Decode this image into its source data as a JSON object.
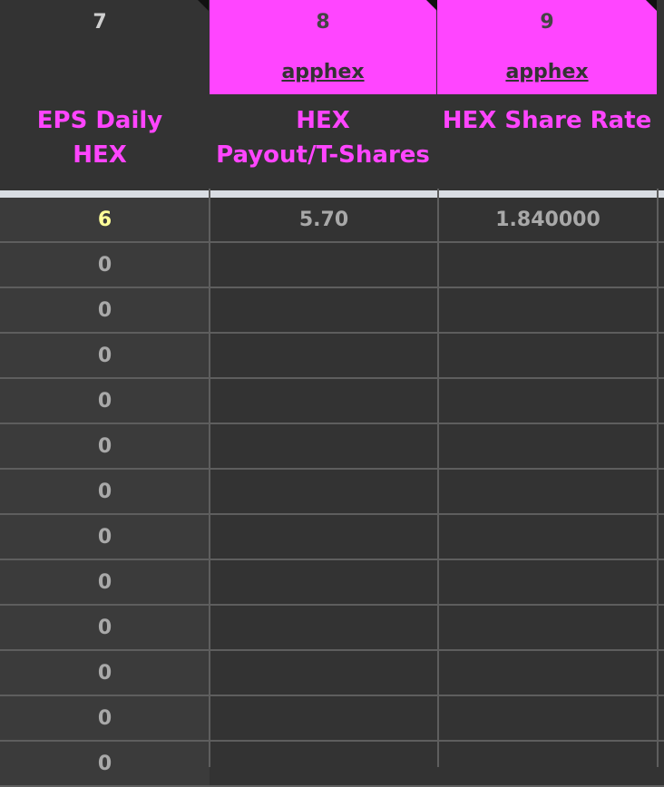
{
  "columns": [
    {
      "number": "7",
      "link": "",
      "header_line1": "EPS Daily",
      "header_line2": "HEX"
    },
    {
      "number": "8",
      "link": "apphex",
      "header_line1": "HEX",
      "header_line2": "Payout/T-Shares"
    },
    {
      "number": "9",
      "link": "apphex",
      "header_line1": "HEX Share Rate",
      "header_line2": ""
    }
  ],
  "rows": [
    {
      "eps": "6",
      "payout": "5.70",
      "rate": "1.840000",
      "highlight": true
    },
    {
      "eps": "0",
      "payout": "",
      "rate": ""
    },
    {
      "eps": "0",
      "payout": "",
      "rate": ""
    },
    {
      "eps": "0",
      "payout": "",
      "rate": ""
    },
    {
      "eps": "0",
      "payout": "",
      "rate": ""
    },
    {
      "eps": "0",
      "payout": "",
      "rate": ""
    },
    {
      "eps": "0",
      "payout": "",
      "rate": ""
    },
    {
      "eps": "0",
      "payout": "",
      "rate": ""
    },
    {
      "eps": "0",
      "payout": "",
      "rate": ""
    },
    {
      "eps": "0",
      "payout": "",
      "rate": ""
    },
    {
      "eps": "0",
      "payout": "",
      "rate": ""
    },
    {
      "eps": "0",
      "payout": "",
      "rate": ""
    },
    {
      "eps": "0",
      "payout": "",
      "rate": ""
    }
  ],
  "colors": {
    "accent": "#ff45ff",
    "highlight": "#ffff99",
    "background": "#333333"
  }
}
